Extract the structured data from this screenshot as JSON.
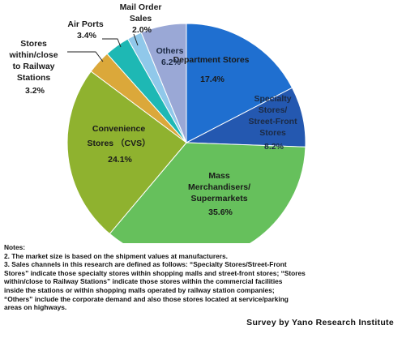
{
  "chart_data": {
    "type": "pie",
    "start_position": "top",
    "direction": "clockwise",
    "slices": [
      {
        "label": "Department Stores",
        "value": 17.4,
        "value_text": "17.4%",
        "color": "#1f6fd0"
      },
      {
        "label": "Specialty Stores/ Street-Front Stores",
        "value": 8.2,
        "value_text": "8.2%",
        "color": "#2458b0"
      },
      {
        "label": "Mass Merchandisers/ Supermarkets",
        "value": 35.6,
        "value_text": "35.6%",
        "color": "#66c05c"
      },
      {
        "label": "Convenience Stores （CVS）",
        "value": 24.1,
        "value_text": "24.1%",
        "color": "#8fb22f"
      },
      {
        "label": "Stores within/close to Railway Stations",
        "value": 3.2,
        "value_text": "3.2%",
        "color": "#dba83a"
      },
      {
        "label": "Air Ports",
        "value": 3.4,
        "value_text": "3.4%",
        "color": "#1eb8b4"
      },
      {
        "label": "Mail Order Sales",
        "value": 2.0,
        "value_text": "2.0%",
        "color": "#90c8ea"
      },
      {
        "label": "Others",
        "value": 6.2,
        "value_text": "6.2%",
        "color": "#9aa8d6"
      }
    ]
  },
  "notes": {
    "heading": "Notes:",
    "note2": "2. The market size is based on the shipment values at manufacturers.",
    "note3_lines": [
      "3.  Sales channels in this research are defined as follows: “Specialty Stores/Street-Front",
      "Stores” indicate those specialty stores within shopping malls and street-front stores; “Stores",
      "within/close to Railway Stations” indicate those stores within the commercial facilities",
      "inside the stations or within shopping malls operated by railway station companies;",
      "“Others” include the corporate demand and also those stores located at service/parking",
      "areas on highways."
    ]
  },
  "source": "Survey by Yano Research Institute"
}
